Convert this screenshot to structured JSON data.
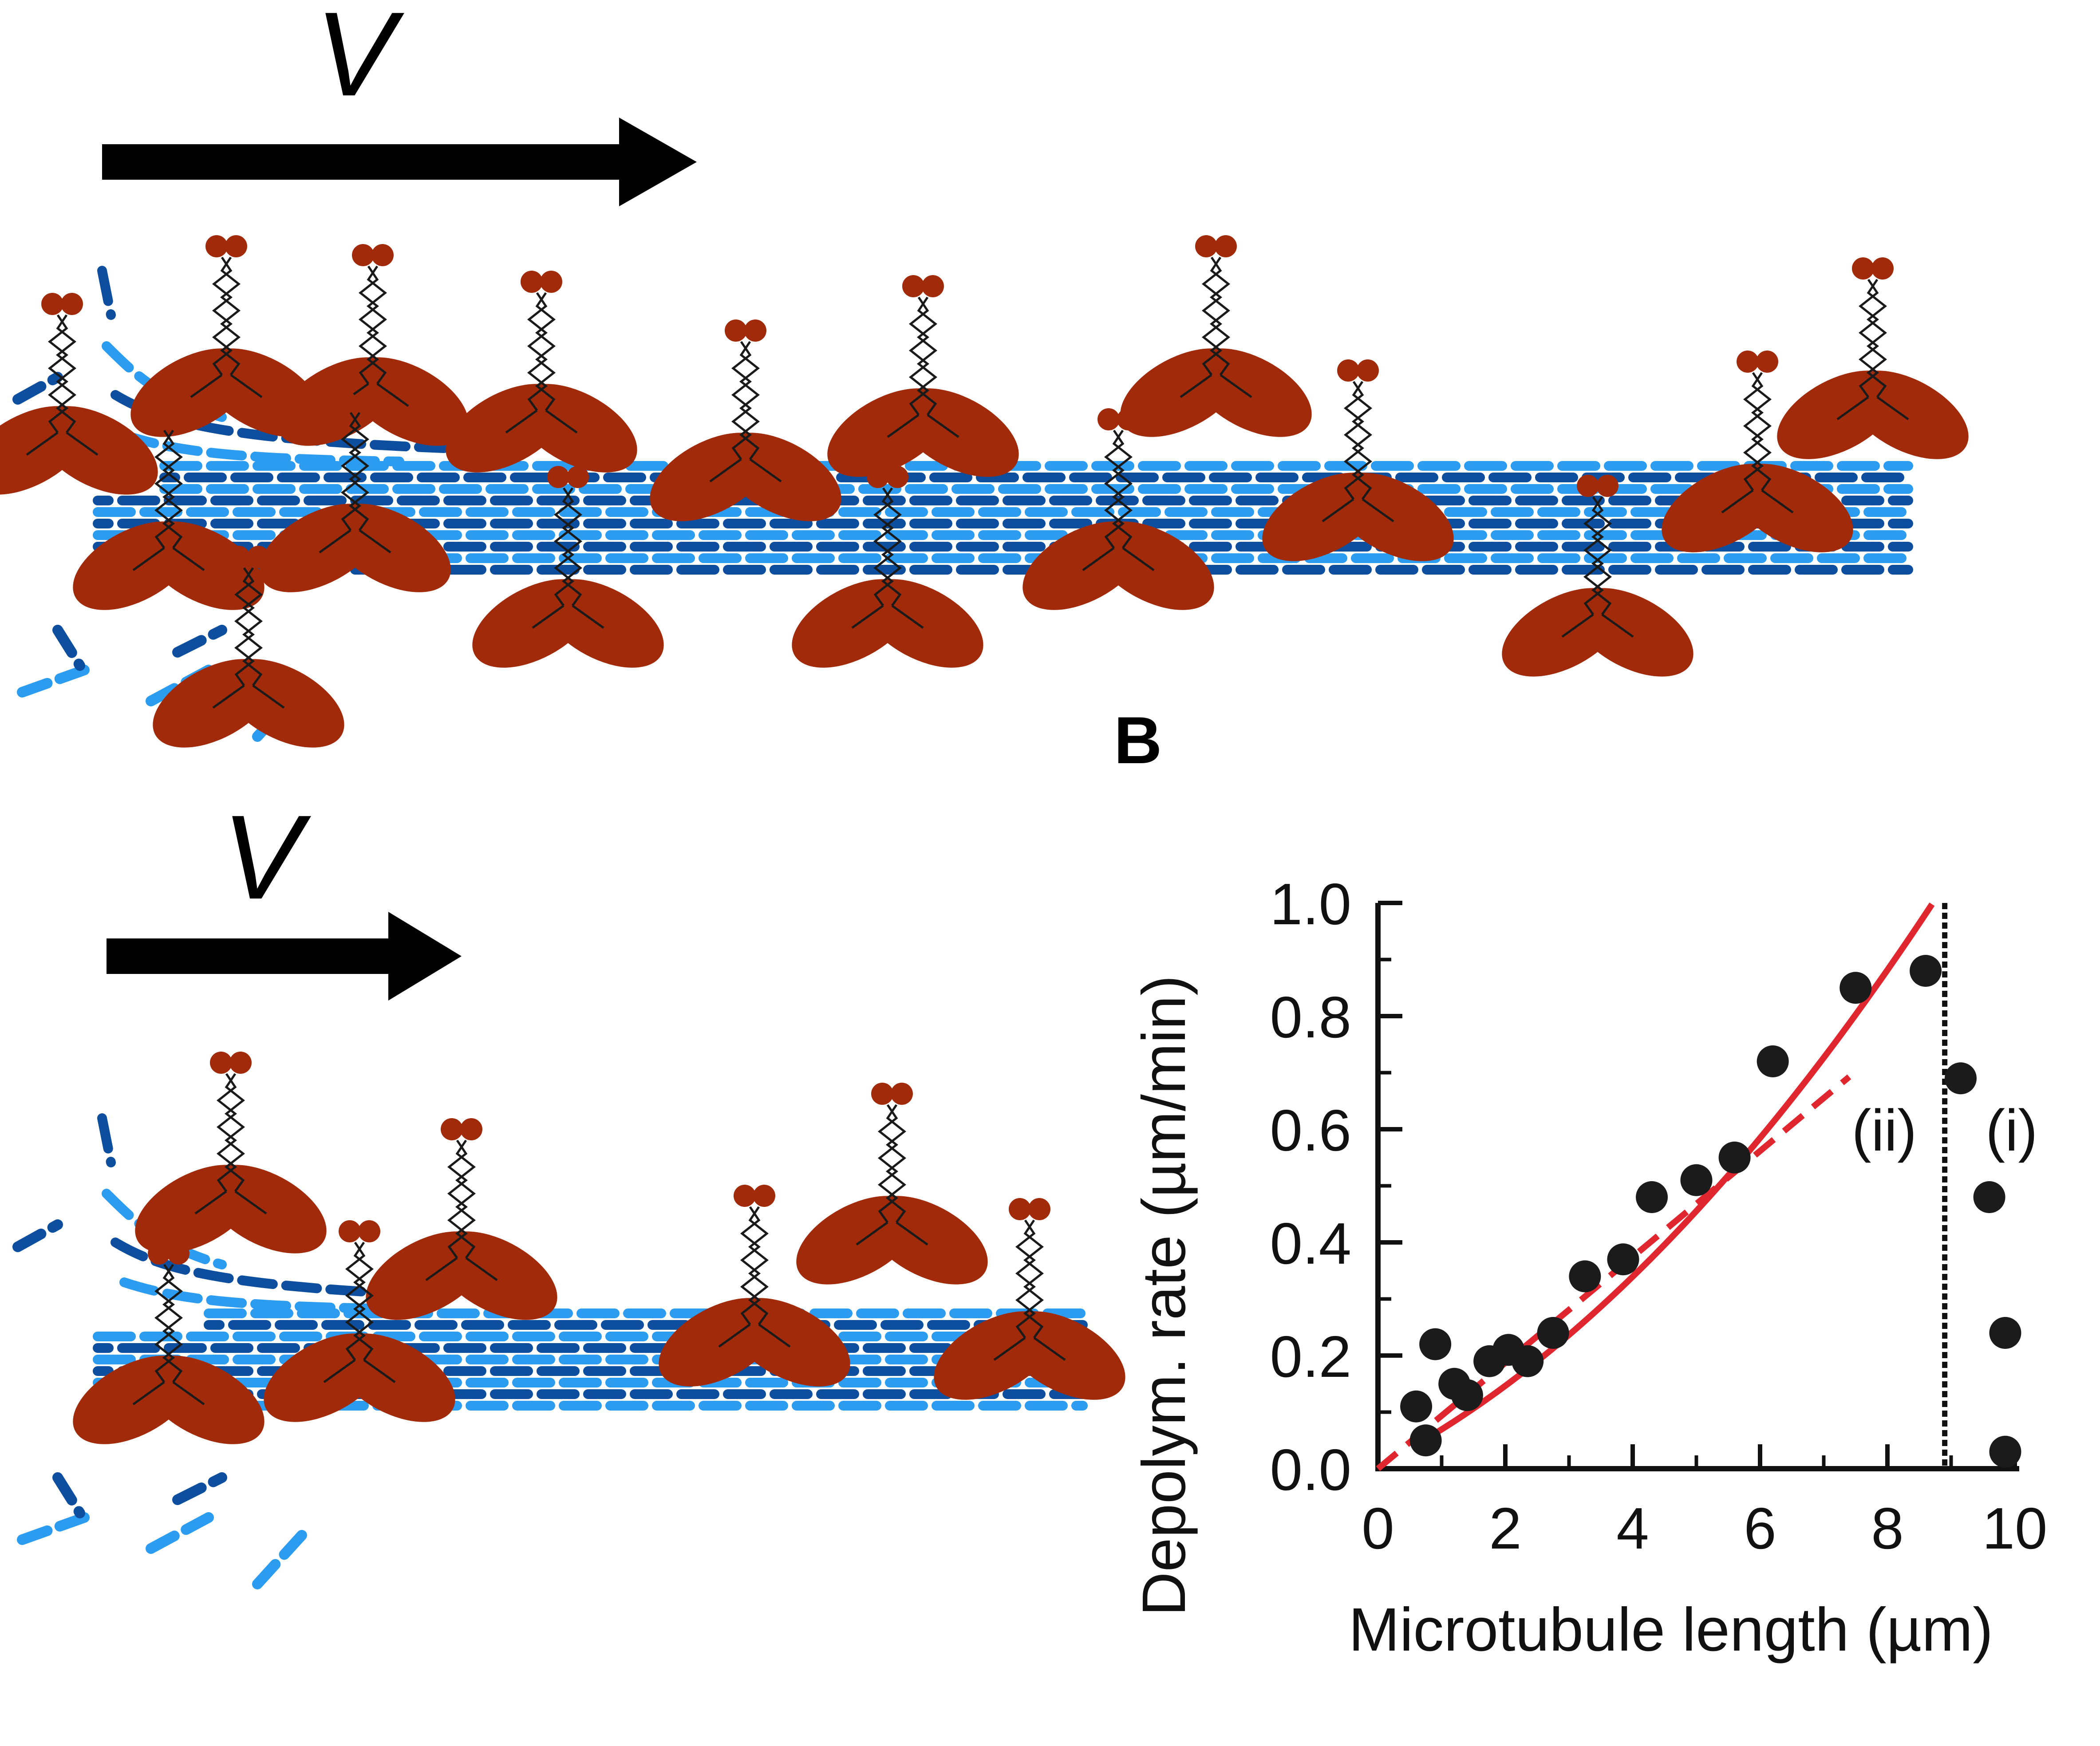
{
  "panel_a": {
    "top": {
      "velocity_label": "V",
      "lattice_end": 4300
    },
    "bottom": {
      "velocity_label": "V",
      "lattice_end": 2440
    }
  },
  "panel_b": {
    "panel_label": "B",
    "chart_data": {
      "type": "scatter",
      "xlabel": "Microtubule length (µm)",
      "ylabel": "Depolym. rate (µm/min)",
      "xlim": [
        0,
        10
      ],
      "ylim": [
        0,
        1.0
      ],
      "xticks": [
        "0",
        "2",
        "4",
        "6",
        "8",
        "10"
      ],
      "yticks": [
        "0.0",
        "0.2",
        "0.4",
        "0.6",
        "0.8",
        "1.0"
      ],
      "x_tick_values": [
        0,
        2,
        4,
        6,
        8,
        10
      ],
      "y_tick_values": [
        0,
        0.2,
        0.4,
        0.6,
        0.8,
        1.0
      ],
      "points": [
        {
          "x": 0.6,
          "y": 0.11
        },
        {
          "x": 0.75,
          "y": 0.05
        },
        {
          "x": 0.9,
          "y": 0.22
        },
        {
          "x": 1.2,
          "y": 0.15
        },
        {
          "x": 1.4,
          "y": 0.13
        },
        {
          "x": 1.75,
          "y": 0.19
        },
        {
          "x": 2.05,
          "y": 0.21
        },
        {
          "x": 2.35,
          "y": 0.19
        },
        {
          "x": 2.75,
          "y": 0.24
        },
        {
          "x": 3.25,
          "y": 0.34
        },
        {
          "x": 3.85,
          "y": 0.37
        },
        {
          "x": 4.3,
          "y": 0.48
        },
        {
          "x": 5.0,
          "y": 0.51
        },
        {
          "x": 5.6,
          "y": 0.55
        },
        {
          "x": 6.2,
          "y": 0.72
        },
        {
          "x": 7.5,
          "y": 0.85
        },
        {
          "x": 8.6,
          "y": 0.88
        },
        {
          "x": 9.15,
          "y": 0.69
        },
        {
          "x": 9.6,
          "y": 0.48
        },
        {
          "x": 9.85,
          "y": 0.24
        },
        {
          "x": 9.85,
          "y": 0.03
        }
      ],
      "fit_solid": {
        "color": "#e0262e",
        "x_start": 0.6,
        "x_end": 8.7
      },
      "fit_dashed": {
        "color": "#e0262e",
        "x_start": 0,
        "x_end": 7.4
      },
      "boundary_x": 8.9,
      "regions": [
        {
          "label": "(ii)",
          "x": 7.95,
          "y": 0.6
        },
        {
          "label": "(i)",
          "x": 9.95,
          "y": 0.6
        }
      ]
    }
  },
  "colors": {
    "dark_blue": "#0d4f9e",
    "light_blue": "#2c9cf0",
    "kinesin_brown": "#a12a0a",
    "fit_red": "#e0262e"
  }
}
